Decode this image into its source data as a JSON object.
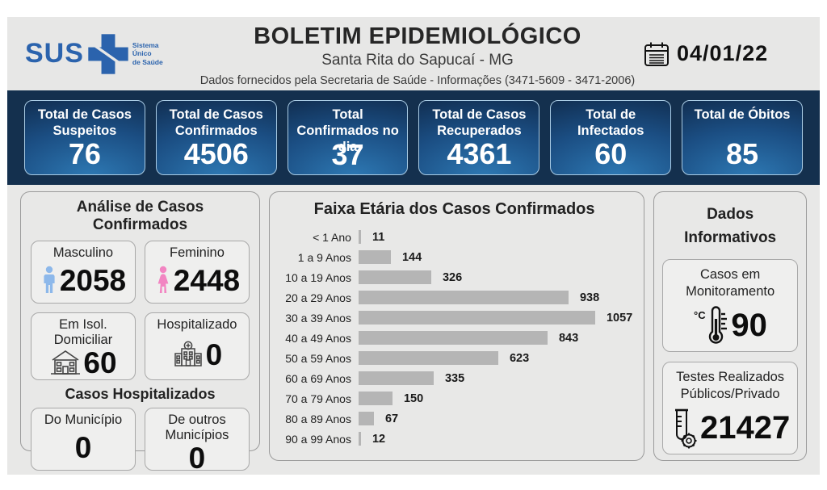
{
  "header": {
    "logo_text": "SUS",
    "logo_subtext": "Sistema\nÚnico\nde Saúde",
    "title": "BOLETIM EPIDEMIOLÓGICO",
    "subtitle": "Santa Rita do Sapucaí - MG",
    "info_line": "Dados fornecidos pela Secretaria de Saúde - Informações (3471-5609 - 3471-2006)",
    "date": "04/01/22"
  },
  "summary_cards": [
    {
      "label": "Total de Casos Suspeitos",
      "value": "76"
    },
    {
      "label": "Total de Casos Confirmados",
      "value": "4506"
    },
    {
      "label": "Total Confirmados no dia",
      "value": "37"
    },
    {
      "label": "Total de Casos Recuperados",
      "value": "4361"
    },
    {
      "label": "Total de Infectados",
      "value": "60"
    },
    {
      "label": "Total de Óbitos",
      "value": "85"
    }
  ],
  "analysis_panel": {
    "title": "Análise de Casos Confirmados",
    "male": {
      "label": "Masculino",
      "value": "2058",
      "icon": "male-icon"
    },
    "female": {
      "label": "Feminino",
      "value": "2448",
      "icon": "female-icon"
    },
    "isolation": {
      "label": "Em Isol. Domiciliar",
      "value": "60",
      "icon": "house-icon"
    },
    "hospitalized": {
      "label": "Hospitalizado",
      "value": "0",
      "icon": "hospital-icon"
    },
    "hospitalized_title": "Casos Hospitalizados",
    "from_city": {
      "label": "Do Município",
      "value": "0"
    },
    "from_other": {
      "label": "De outros Municípios",
      "value": "0"
    }
  },
  "chart_data": {
    "type": "bar",
    "orientation": "horizontal",
    "title": "Faixa Etária dos Casos Confirmados",
    "categories": [
      "< 1 Ano",
      "1 a 9 Anos",
      "10 a 19 Anos",
      "20 a 29 Anos",
      "30 a 39 Anos",
      "40 a 49 Anos",
      "50 a 59 Anos",
      "60 a 69 Anos",
      "70 a 79 Anos",
      "80 a 89 Anos",
      "90 a 99 Anos"
    ],
    "values": [
      11,
      144,
      326,
      938,
      1057,
      843,
      623,
      335,
      150,
      67,
      12
    ],
    "xlim": [
      0,
      1100
    ],
    "bar_color": "#b5b5b5",
    "grid": false,
    "legend": false,
    "value_labels": true
  },
  "info_panel": {
    "title": "Dados Informativos",
    "monitoring": {
      "label": "Casos em Monitoramento",
      "value": "90",
      "icon": "thermometer-icon"
    },
    "tests": {
      "label": "Testes Realizados Públicos/Privado",
      "value": "21427",
      "icon": "test-tube-icon"
    }
  },
  "colors": {
    "band_navy": "#14304e",
    "card_blue": "#2e7ab5",
    "card_border_light": "#a9cbe4",
    "sus_blue": "#2b63ad",
    "bar_gray": "#b5b5b5",
    "panel_bg": "#e8e8e7",
    "male_blue": "#8db8ea",
    "female_pink": "#f285c2"
  }
}
